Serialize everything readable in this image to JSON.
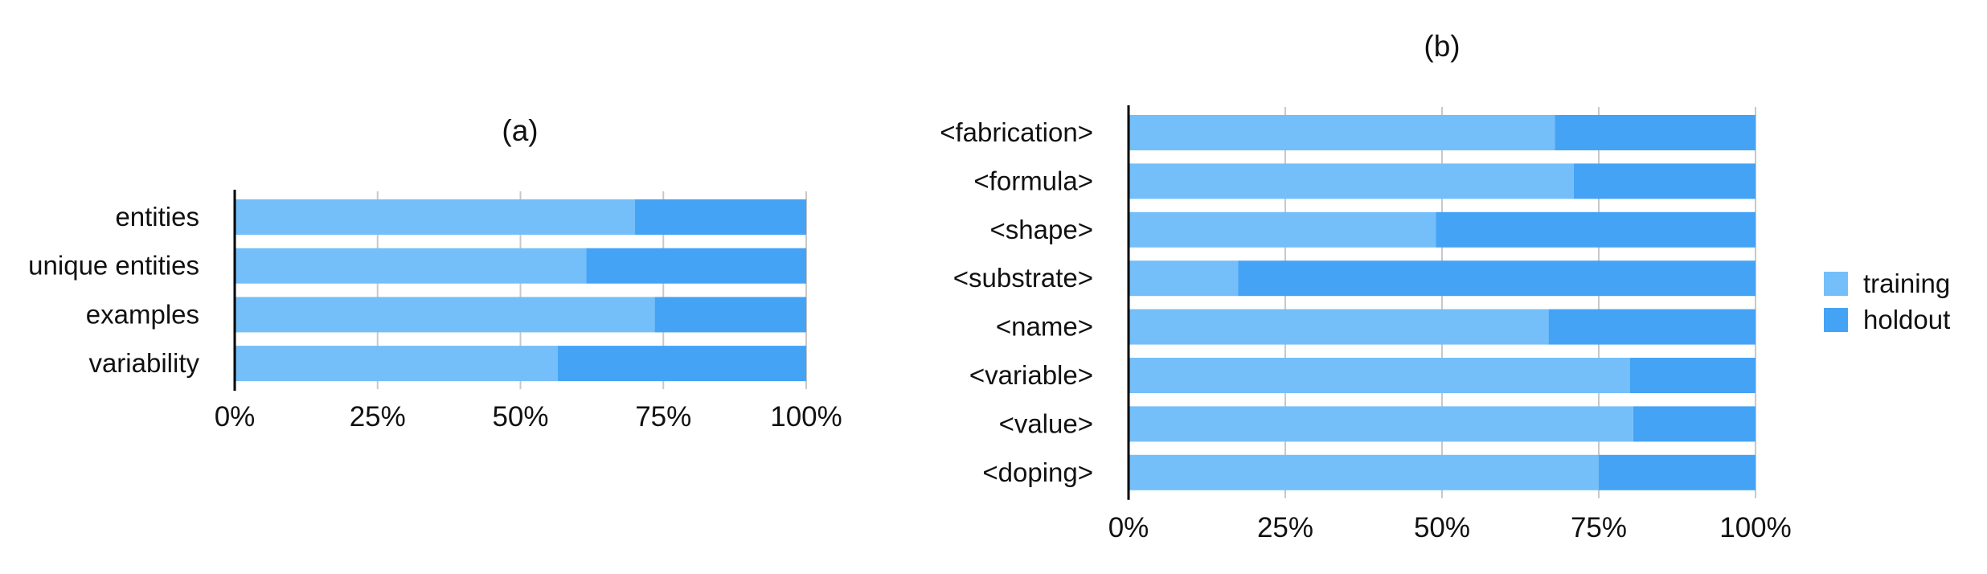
{
  "colors": {
    "training": "#74bff9",
    "holdout": "#45a3f6",
    "grid": "#c8c8c8",
    "axis": "#000000"
  },
  "legend": {
    "items": [
      "training",
      "holdout"
    ]
  },
  "chart_data": [
    {
      "type": "bar",
      "orientation": "horizontal",
      "stacked": "percent",
      "title": "(a)",
      "categories": [
        "entities",
        "unique entities",
        "examples",
        "variability"
      ],
      "series": [
        {
          "name": "training",
          "values": [
            70,
            61.5,
            73.5,
            56.5
          ]
        },
        {
          "name": "holdout",
          "values": [
            30,
            38.5,
            26.5,
            43.5
          ]
        }
      ],
      "xticks": [
        "0%",
        "25%",
        "50%",
        "75%",
        "100%"
      ],
      "xlim": [
        0,
        100
      ],
      "grid": true
    },
    {
      "type": "bar",
      "orientation": "horizontal",
      "stacked": "percent",
      "title": "(b)",
      "categories": [
        "<fabrication>",
        "<formula>",
        "<shape>",
        "<substrate>",
        "<name>",
        "<variable>",
        "<value>",
        "<doping>"
      ],
      "series": [
        {
          "name": "training",
          "values": [
            68,
            71,
            49,
            17.5,
            67,
            80,
            80.5,
            75
          ]
        },
        {
          "name": "holdout",
          "values": [
            32,
            29,
            51,
            82.5,
            33,
            20,
            19.5,
            25
          ]
        }
      ],
      "xticks": [
        "0%",
        "25%",
        "50%",
        "75%",
        "100%"
      ],
      "xlim": [
        0,
        100
      ],
      "grid": true,
      "legend_position": "right"
    }
  ]
}
